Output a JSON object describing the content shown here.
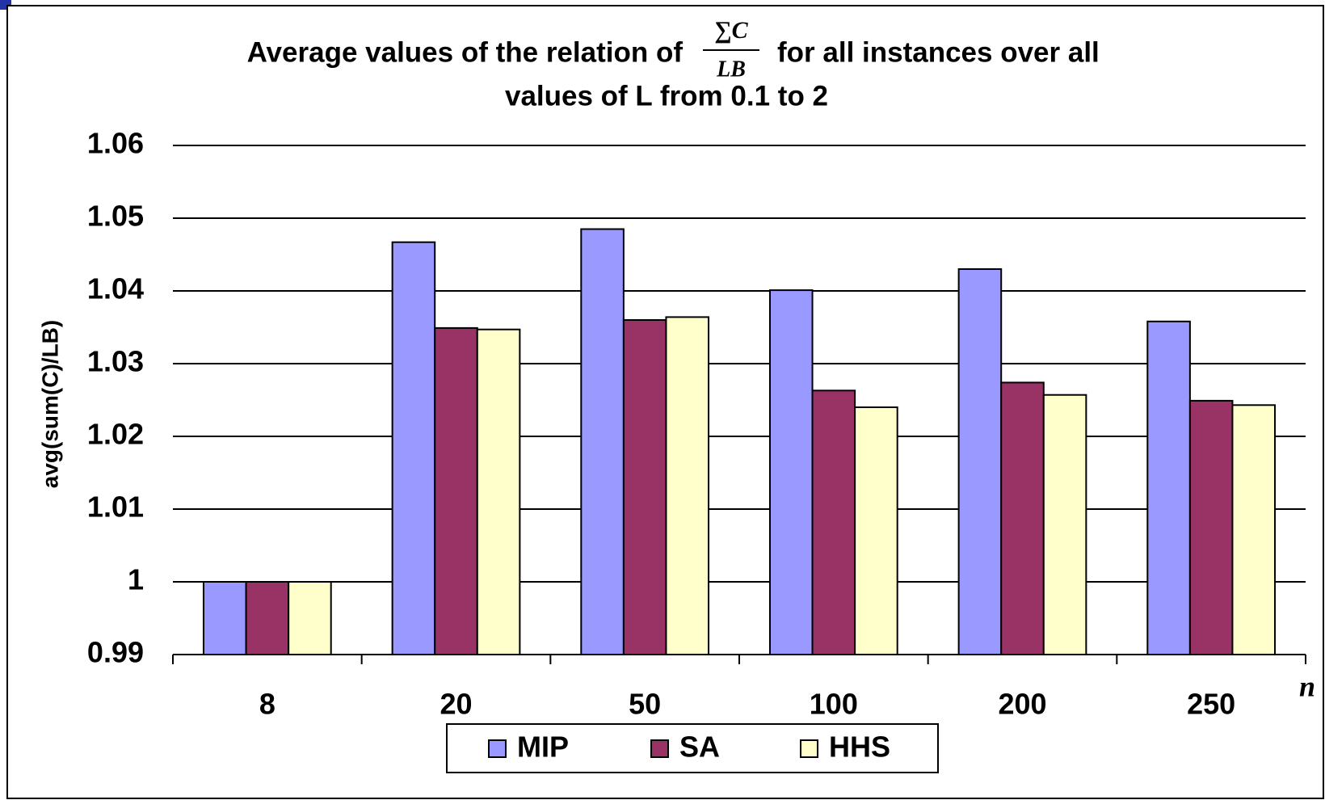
{
  "chart_data": {
    "type": "bar",
    "title_parts": [
      "Average values of the relation of",
      "for all instances over all",
      "values of L from 0.1 to 2"
    ],
    "title_formula": {
      "numerator": "∑C",
      "denominator": "LB"
    },
    "y_label": "avg(sum(C)/LB)",
    "x_label": "n",
    "categories": [
      "8",
      "20",
      "50",
      "100",
      "200",
      "250"
    ],
    "series": [
      {
        "name": "MIP",
        "color": "#9999ff",
        "values": [
          1.0,
          1.0467,
          1.0485,
          1.0401,
          1.043,
          1.0358
        ]
      },
      {
        "name": "SA",
        "color": "#993366",
        "values": [
          1.0,
          1.0349,
          1.036,
          1.0263,
          1.0274,
          1.0249
        ]
      },
      {
        "name": "HHS",
        "color": "#ffffcc",
        "values": [
          1.0,
          1.0347,
          1.0364,
          1.024,
          1.0257,
          1.0243
        ]
      }
    ],
    "ylim": [
      0.99,
      1.06
    ],
    "yticks": [
      0.99,
      1,
      1.01,
      1.02,
      1.03,
      1.04,
      1.05,
      1.06
    ],
    "grid": true,
    "legend": "bottom"
  }
}
